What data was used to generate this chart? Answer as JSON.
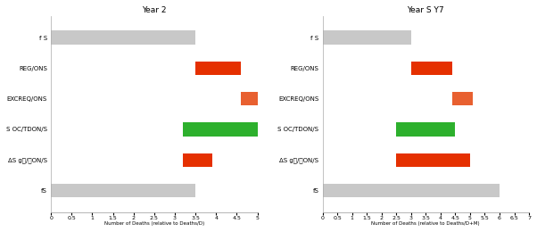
{
  "left_title": "Year 2",
  "right_title": "Year S Y7",
  "left_xlabel": "Number of Deaths (relative to Deaths/D)",
  "right_xlabel": "Number of Deaths (relative to Deaths/D+M)",
  "categories": [
    "f S",
    "REG/ONS",
    "EXCREQ/ONS",
    "S OC/TDON/S",
    "ΔS gᵜ/ᵜON/S",
    "fS"
  ],
  "left_starts": [
    0.0,
    3.5,
    4.6,
    3.2,
    3.2,
    0.0
  ],
  "left_widths": [
    3.5,
    1.1,
    0.6,
    1.8,
    0.7,
    3.5
  ],
  "left_colors": [
    "#c8c8c8",
    "#e53000",
    "#e86030",
    "#2db02d",
    "#e53000",
    "#c8c8c8"
  ],
  "right_starts": [
    0.0,
    3.0,
    4.4,
    2.5,
    2.5,
    0.0
  ],
  "right_widths": [
    3.0,
    1.4,
    0.7,
    2.0,
    2.5,
    6.0
  ],
  "right_colors": [
    "#c8c8c8",
    "#e53000",
    "#e86030",
    "#2db02d",
    "#e53000",
    "#c8c8c8"
  ],
  "xlim_left": [
    0,
    5
  ],
  "xlim_right": [
    0,
    7
  ],
  "xticks_left": [
    0,
    0.5,
    1,
    1.5,
    2,
    2.5,
    3,
    3.5,
    4,
    4.5,
    5
  ],
  "xticks_right": [
    0,
    0.5,
    1,
    1.5,
    2,
    2.5,
    3,
    3.5,
    4,
    4.5,
    5,
    5.5,
    6,
    6.5,
    7
  ],
  "bar_height": 0.45,
  "fig_bg": "#ffffff",
  "ax_bg": "#ffffff",
  "ytick_fontsize": 5.0,
  "xtick_fontsize": 4.5,
  "xlabel_fontsize": 4.0,
  "title_fontsize": 6.5
}
